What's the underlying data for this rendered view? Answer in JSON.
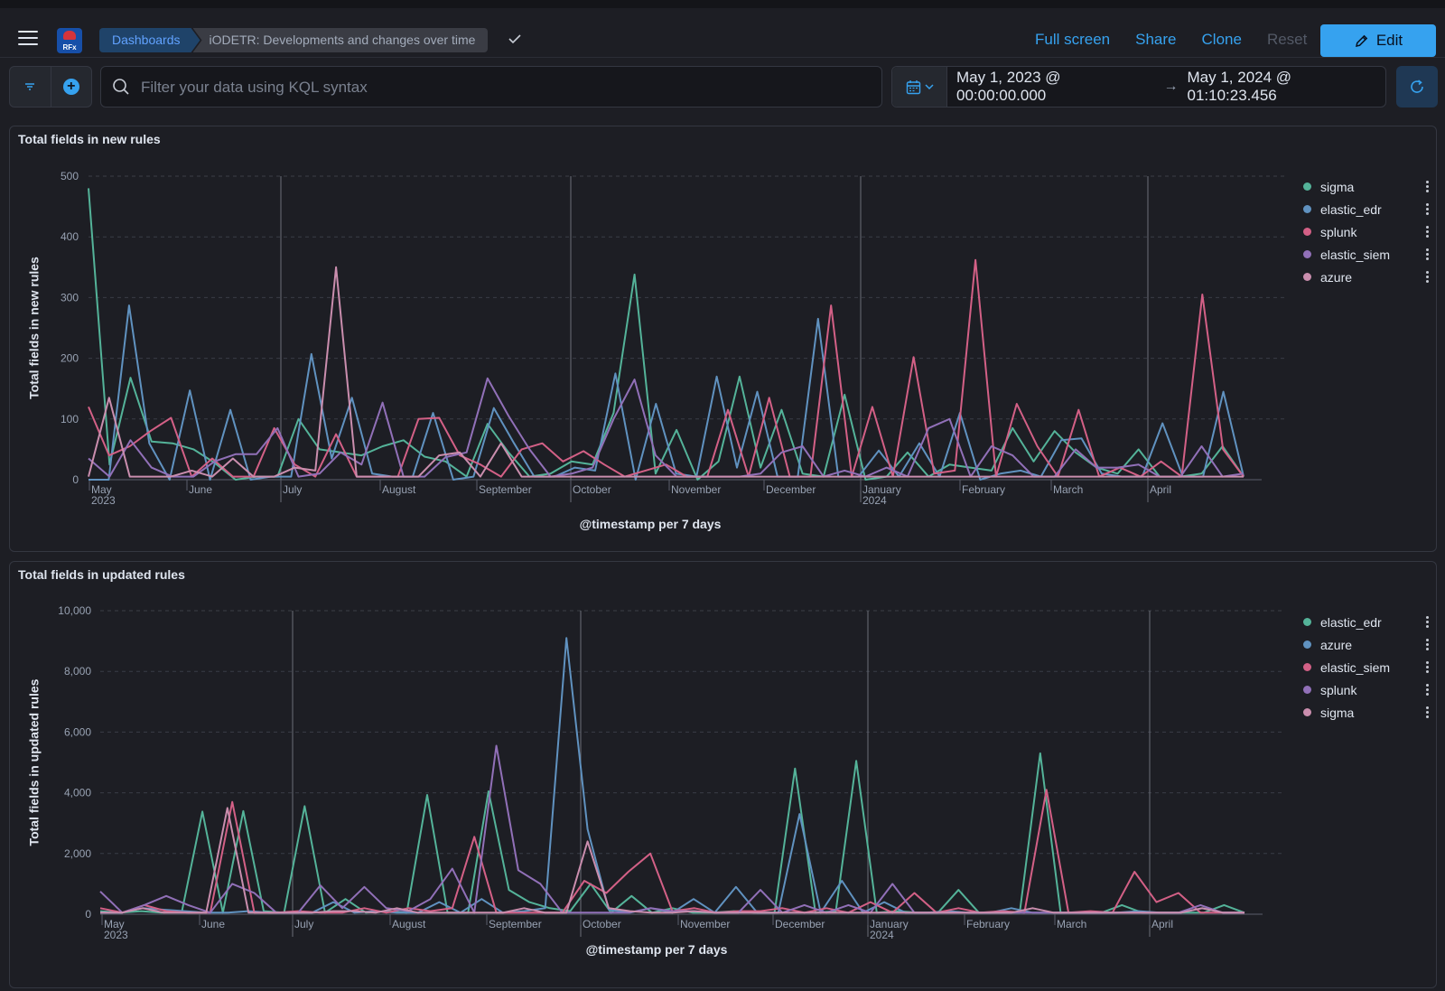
{
  "header": {
    "breadcrumbs": [
      "Dashboards",
      "iODETR: Developments and changes over time"
    ],
    "logo_text": "RFx",
    "actions": {
      "full_screen": "Full screen",
      "share": "Share",
      "clone": "Clone",
      "reset": "Reset",
      "edit": "Edit"
    }
  },
  "query": {
    "placeholder": "Filter your data using KQL syntax",
    "time_start": "May 1, 2023 @ 00:00:00.000",
    "time_end": "May 1, 2024 @ 01:10:23.456"
  },
  "colors": {
    "green": "#54b399",
    "blue": "#6092c0",
    "red": "#d36086",
    "purple": "#9170b8",
    "pink": "#ca8eae",
    "accent": "#36a2ef"
  },
  "chart_data": [
    {
      "type": "line",
      "title": "Total fields in new rules",
      "xlabel": "@timestamp per 7 days",
      "ylabel": "Total fields in new rules",
      "ylim": [
        0,
        500
      ],
      "yticks": [
        "500",
        "400",
        "300",
        "200",
        "100",
        "0"
      ],
      "xticks": [
        "May",
        "June",
        "July",
        "August",
        "September",
        "October",
        "November",
        "December",
        "January",
        "February",
        "March",
        "April"
      ],
      "xtick_sub": {
        "May": "2023",
        "January": "2024"
      },
      "grid": true,
      "legend_position": "right",
      "series": [
        {
          "name": "sigma",
          "color": "#54b399",
          "values": [
            480,
            25,
            168,
            63,
            60,
            50,
            28,
            0,
            5,
            5,
            100,
            50,
            45,
            40,
            55,
            65,
            38,
            30,
            5,
            92,
            45,
            5,
            10,
            30,
            25,
            110,
            338,
            10,
            82,
            0,
            30,
            170,
            20,
            115,
            10,
            5,
            140,
            0,
            5,
            45,
            5,
            25,
            20,
            15,
            85,
            30,
            80,
            45,
            20,
            10,
            50,
            5,
            5,
            10,
            55,
            5
          ]
        },
        {
          "name": "elastic_edr",
          "color": "#6092c0",
          "values": [
            0,
            0,
            287,
            60,
            0,
            147,
            0,
            115,
            0,
            5,
            5,
            207,
            35,
            135,
            10,
            5,
            5,
            110,
            0,
            5,
            118,
            60,
            5,
            5,
            20,
            15,
            175,
            0,
            125,
            10,
            5,
            170,
            20,
            145,
            5,
            5,
            265,
            5,
            5,
            48,
            5,
            60,
            5,
            110,
            0,
            10,
            15,
            5,
            65,
            68,
            10,
            5,
            5,
            93,
            5,
            5,
            145,
            5
          ]
        },
        {
          "name": "splunk",
          "color": "#d36086",
          "values": [
            120,
            40,
            55,
            80,
            102,
            5,
            35,
            5,
            5,
            85,
            25,
            5,
            75,
            5,
            5,
            5,
            100,
            102,
            40,
            25,
            5,
            50,
            60,
            30,
            47,
            25,
            5,
            15,
            25,
            5,
            5,
            115,
            5,
            135,
            5,
            5,
            287,
            5,
            120,
            5,
            202,
            10,
            15,
            362,
            5,
            125,
            55,
            5,
            115,
            5,
            20,
            5,
            30,
            5,
            305,
            50,
            5
          ]
        },
        {
          "name": "elastic_siem",
          "color": "#9170b8",
          "values": [
            35,
            5,
            65,
            20,
            5,
            5,
            30,
            42,
            42,
            85,
            5,
            10,
            45,
            25,
            127,
            5,
            5,
            37,
            45,
            167,
            105,
            50,
            5,
            10,
            20,
            100,
            165,
            40,
            5,
            5,
            5,
            5,
            10,
            45,
            55,
            5,
            15,
            5,
            20,
            5,
            85,
            100,
            5,
            55,
            40,
            5,
            5,
            50,
            20,
            20,
            25,
            5,
            5,
            55,
            5,
            10
          ]
        },
        {
          "name": "azure",
          "color": "#ca8eae",
          "values": [
            5,
            135,
            5,
            5,
            5,
            15,
            5,
            35,
            5,
            5,
            20,
            15,
            350,
            5,
            5,
            5,
            5,
            40,
            45,
            5,
            60,
            5,
            5,
            5,
            5,
            5,
            5,
            5,
            5,
            5,
            5,
            5,
            5,
            5,
            5,
            5,
            5,
            5,
            5,
            5,
            5,
            5,
            5,
            5,
            5,
            5,
            5,
            5,
            5,
            5,
            5,
            5,
            5,
            5,
            5,
            5,
            5
          ]
        }
      ]
    },
    {
      "type": "line",
      "title": "Total fields in updated rules",
      "xlabel": "@timestamp per 7 days",
      "ylabel": "Total fields in updated rules",
      "ylim": [
        0,
        10000
      ],
      "yticks": [
        "10,000",
        "8,000",
        "6,000",
        "4,000",
        "2,000",
        "0"
      ],
      "xticks": [
        "May",
        "June",
        "July",
        "August",
        "September",
        "October",
        "November",
        "December",
        "January",
        "February",
        "March",
        "April"
      ],
      "xtick_sub": {
        "May": "2023",
        "January": "2024"
      },
      "grid": true,
      "legend_position": "right",
      "series": [
        {
          "name": "elastic_edr",
          "color": "#54b399",
          "values": [
            100,
            50,
            100,
            50,
            100,
            3380,
            50,
            3400,
            100,
            50,
            3560,
            50,
            500,
            50,
            100,
            50,
            3930,
            50,
            50,
            4050,
            800,
            400,
            200,
            100,
            1000,
            50,
            600,
            50,
            200,
            50,
            50,
            100,
            50,
            50,
            4800,
            50,
            100,
            5050,
            50,
            100,
            50,
            50,
            800,
            50,
            50,
            50,
            5300,
            50,
            50,
            50,
            300,
            50,
            50,
            50,
            50,
            300,
            50
          ]
        },
        {
          "name": "azure",
          "color": "#6092c0",
          "values": [
            50,
            50,
            200,
            150,
            100,
            50,
            50,
            100,
            50,
            50,
            50,
            400,
            50,
            100,
            50,
            50,
            400,
            50,
            500,
            50,
            100,
            200,
            9100,
            2800,
            150,
            50,
            200,
            50,
            500,
            50,
            900,
            50,
            50,
            3300,
            50,
            1100,
            50,
            400,
            50,
            50,
            100,
            50,
            50,
            200,
            50,
            50,
            50,
            50,
            50,
            100,
            50,
            50,
            200,
            50,
            50
          ]
        },
        {
          "name": "elastic_siem",
          "color": "#d36086",
          "values": [
            200,
            50,
            300,
            100,
            50,
            50,
            3700,
            50,
            50,
            100,
            50,
            50,
            200,
            50,
            200,
            100,
            200,
            2550,
            50,
            50,
            50,
            50,
            1100,
            700,
            1400,
            2000,
            100,
            200,
            50,
            100,
            100,
            200,
            50,
            200,
            50,
            400,
            50,
            700,
            50,
            200,
            50,
            100,
            50,
            4100,
            50,
            100,
            50,
            1400,
            400,
            700,
            50,
            50,
            50
          ]
        },
        {
          "name": "splunk",
          "color": "#9170b8",
          "values": [
            750,
            50,
            300,
            600,
            300,
            50,
            1000,
            700,
            50,
            50,
            950,
            200,
            900,
            200,
            100,
            500,
            1500,
            50,
            5550,
            1450,
            1000,
            50,
            50,
            50,
            50,
            200,
            100,
            100,
            50,
            50,
            800,
            50,
            300,
            50,
            300,
            50,
            1000,
            50,
            50,
            50,
            50,
            50,
            50,
            50,
            50,
            50,
            50,
            50,
            50,
            50,
            300,
            50,
            50
          ]
        },
        {
          "name": "sigma",
          "color": "#ca8eae",
          "values": [
            50,
            50,
            200,
            50,
            50,
            50,
            3500,
            50,
            50,
            50,
            50,
            100,
            100,
            50,
            200,
            50,
            50,
            50,
            50,
            50,
            200,
            50,
            50,
            2400,
            200,
            100,
            50,
            50,
            100,
            50,
            50,
            50,
            50,
            50,
            50,
            50,
            50,
            50,
            50,
            50,
            50,
            50,
            50,
            50,
            200,
            50,
            50,
            50,
            50,
            50,
            50,
            50,
            200,
            50,
            50
          ]
        }
      ]
    }
  ]
}
